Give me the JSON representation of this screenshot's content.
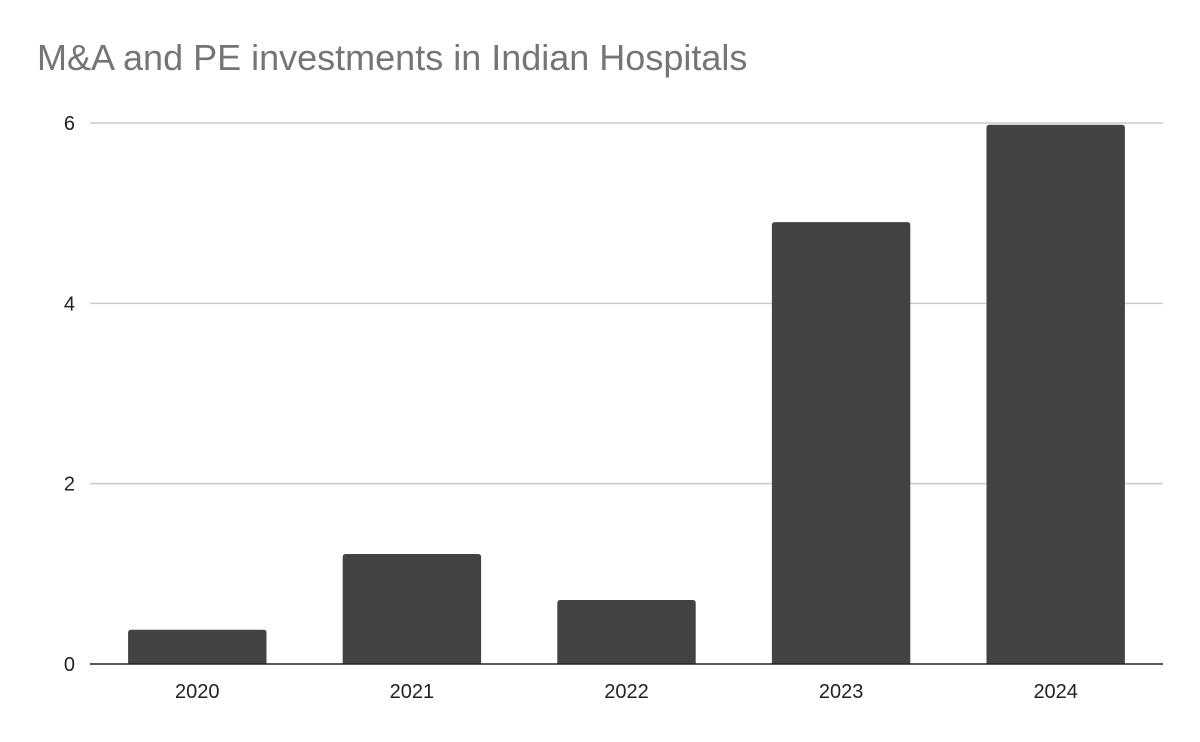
{
  "chart_data": {
    "type": "bar",
    "title": "M&A and PE investments in Indian Hospitals",
    "xlabel": "",
    "ylabel": "",
    "categories": [
      "2020",
      "2021",
      "2022",
      "2023",
      "2024"
    ],
    "values": [
      0.38,
      1.22,
      0.71,
      4.9,
      5.98
    ],
    "ylim": [
      0,
      6
    ],
    "yticks": [
      "0",
      "2",
      "4",
      "6"
    ],
    "grid": true,
    "bar_color": "#434343",
    "grid_color": "#cccccc",
    "axis_color": "#222222"
  }
}
